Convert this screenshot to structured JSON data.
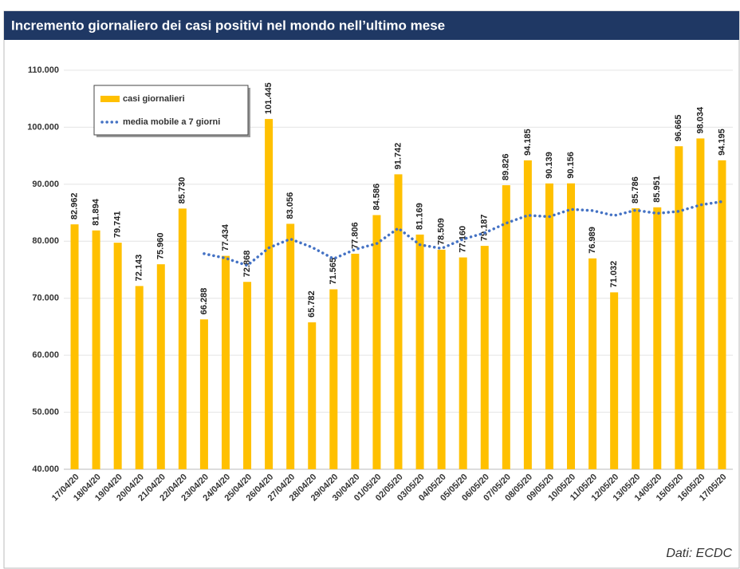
{
  "chart_data": {
    "type": "bar",
    "title": "Incremento giornaliero dei casi positivi nel mondo nell’ultimo mese",
    "source": "Dati: ECDC",
    "categories": [
      "17/04/20",
      "18/04/20",
      "19/04/20",
      "20/04/20",
      "21/04/20",
      "22/04/20",
      "23/04/20",
      "24/04/20",
      "25/04/20",
      "26/04/20",
      "27/04/20",
      "28/04/20",
      "29/04/20",
      "30/04/20",
      "01/05/20",
      "02/05/20",
      "03/05/20",
      "04/05/20",
      "05/05/20",
      "06/05/20",
      "07/05/20",
      "08/05/20",
      "09/05/20",
      "10/05/20",
      "11/05/20",
      "12/05/20",
      "13/05/20",
      "14/05/20",
      "15/05/20",
      "16/05/20",
      "17/05/20"
    ],
    "series": [
      {
        "name": "casi giornalieri",
        "color": "#ffc000",
        "type": "bar",
        "values": [
          82962,
          81894,
          79741,
          72143,
          75960,
          85730,
          66288,
          77434,
          72868,
          101445,
          83056,
          65782,
          71565,
          77806,
          84586,
          91742,
          81169,
          78509,
          77160,
          79187,
          89826,
          94185,
          90139,
          90156,
          76989,
          71032,
          85786,
          85951,
          96665,
          98034,
          94195
        ],
        "value_labels": [
          "82.962",
          "81.894",
          "79.741",
          "72.143",
          "75.960",
          "85.730",
          "66.288",
          "77.434",
          "72.868",
          "101.445",
          "83.056",
          "65.782",
          "71.565",
          "77.806",
          "84.586",
          "91.742",
          "81.169",
          "78.509",
          "77.160",
          "79.187",
          "89.826",
          "94.185",
          "90.139",
          "90.156",
          "76.989",
          "71.032",
          "85.786",
          "85.951",
          "96.665",
          "98.034",
          "94.195"
        ]
      },
      {
        "name": "media mobile a 7 giorni",
        "color": "#4472c4",
        "type": "line",
        "values": [
          null,
          null,
          null,
          null,
          null,
          null,
          77817,
          77027,
          75738,
          78838,
          80397,
          78943,
          76920,
          78565,
          79587,
          82283,
          79387,
          78737,
          80362,
          81451,
          83168,
          84540,
          84311,
          85595,
          85377,
          84502,
          85445,
          84891,
          85245,
          86373,
          86950
        ]
      }
    ],
    "ylim": [
      40000,
      110000
    ],
    "yticks": [
      {
        "value": 40000,
        "label": "40.000"
      },
      {
        "value": 50000,
        "label": "50.000"
      },
      {
        "value": 60000,
        "label": "60.000"
      },
      {
        "value": 70000,
        "label": "70.000"
      },
      {
        "value": 80000,
        "label": "80.000"
      },
      {
        "value": 90000,
        "label": "90.000"
      },
      {
        "value": 100000,
        "label": "100.000"
      },
      {
        "value": 110000,
        "label": "110.000"
      }
    ],
    "grid": true,
    "legend": "top-left"
  }
}
